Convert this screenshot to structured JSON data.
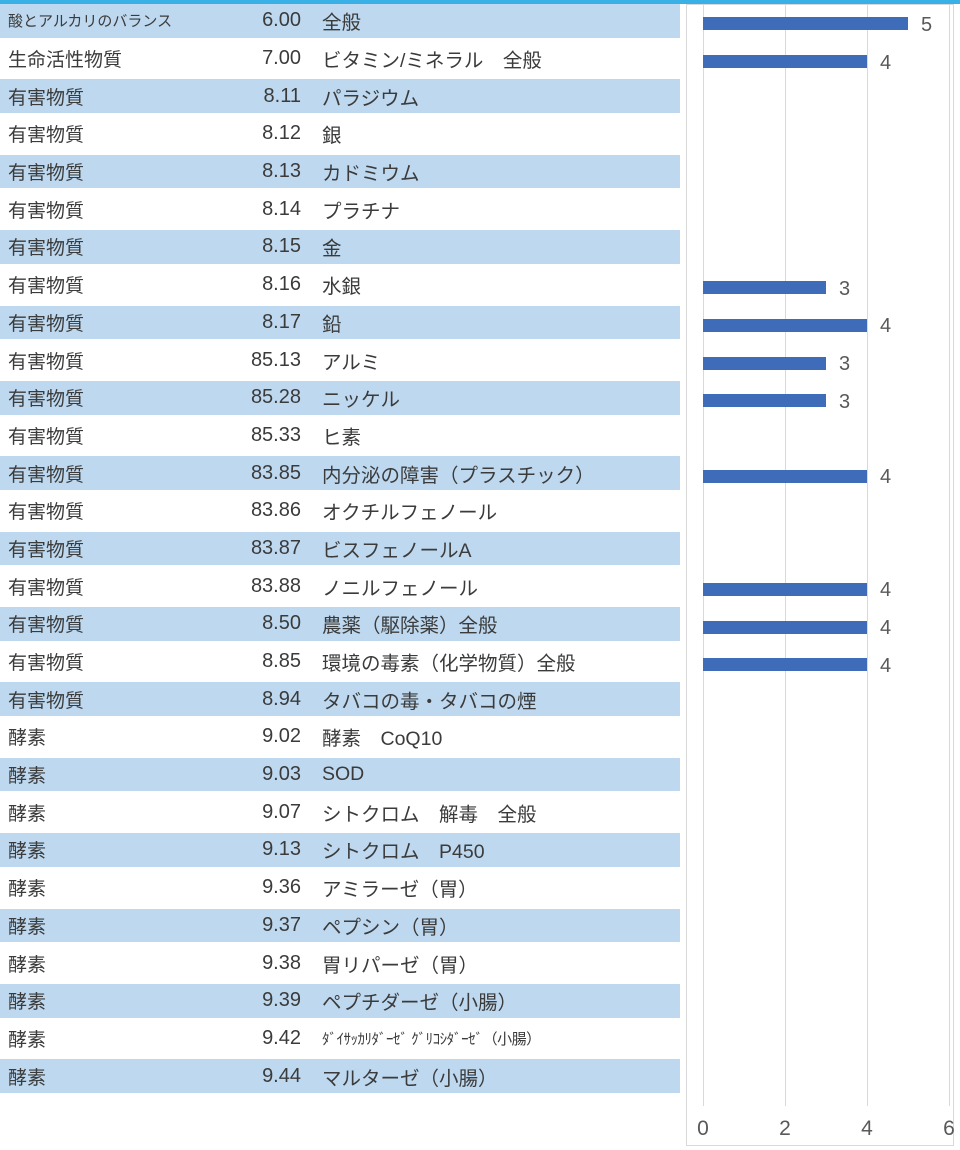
{
  "table": {
    "rows": [
      {
        "category": "酸とアルカリのバランス",
        "code": "6.00",
        "item": "全般",
        "value": 5
      },
      {
        "category": "生命活性物質",
        "code": "7.00",
        "item": "ビタミン/ミネラル　全般",
        "value": 4
      },
      {
        "category": "有害物質",
        "code": "8.11",
        "item": "パラジウム",
        "value": null
      },
      {
        "category": "有害物質",
        "code": "8.12",
        "item": "銀",
        "value": null
      },
      {
        "category": "有害物質",
        "code": "8.13",
        "item": "カドミウム",
        "value": null
      },
      {
        "category": "有害物質",
        "code": "8.14",
        "item": "プラチナ",
        "value": null
      },
      {
        "category": "有害物質",
        "code": "8.15",
        "item": "金",
        "value": null
      },
      {
        "category": "有害物質",
        "code": "8.16",
        "item": "水銀",
        "value": 3
      },
      {
        "category": "有害物質",
        "code": "8.17",
        "item": "鉛",
        "value": 4
      },
      {
        "category": "有害物質",
        "code": "85.13",
        "item": "アルミ",
        "value": 3
      },
      {
        "category": "有害物質",
        "code": "85.28",
        "item": "ニッケル",
        "value": 3
      },
      {
        "category": "有害物質",
        "code": "85.33",
        "item": "ヒ素",
        "value": null
      },
      {
        "category": "有害物質",
        "code": "83.85",
        "item": "内分泌の障害（プラスチック）",
        "value": 4
      },
      {
        "category": "有害物質",
        "code": "83.86",
        "item": "オクチルフェノール",
        "value": null
      },
      {
        "category": "有害物質",
        "code": "83.87",
        "item": "ビスフェノールA",
        "value": null
      },
      {
        "category": "有害物質",
        "code": "83.88",
        "item": "ノニルフェノール",
        "value": 4
      },
      {
        "category": "有害物質",
        "code": "8.50",
        "item": "農薬（駆除薬）全般",
        "value": 4
      },
      {
        "category": "有害物質",
        "code": "8.85",
        "item": "環境の毒素（化学物質）全般",
        "value": 4
      },
      {
        "category": "有害物質",
        "code": "8.94",
        "item": "タバコの毒・タバコの煙",
        "value": null
      },
      {
        "category": "酵素",
        "code": "9.02",
        "item": "酵素　CoQ10",
        "value": null
      },
      {
        "category": "酵素",
        "code": "9.03",
        "item": "SOD",
        "value": null
      },
      {
        "category": "酵素",
        "code": "9.07",
        "item": "シトクロム　解毒　全般",
        "value": null
      },
      {
        "category": "酵素",
        "code": "9.13",
        "item": "シトクロム　P450",
        "value": null
      },
      {
        "category": "酵素",
        "code": "9.36",
        "item": "アミラーゼ（胃）",
        "value": null
      },
      {
        "category": "酵素",
        "code": "9.37",
        "item": "ペプシン（胃）",
        "value": null
      },
      {
        "category": "酵素",
        "code": "9.38",
        "item": "胃リパーゼ（胃）",
        "value": null
      },
      {
        "category": "酵素",
        "code": "9.39",
        "item": "ペプチダーゼ（小腸）",
        "value": null
      },
      {
        "category": "酵素",
        "code": "9.42",
        "item": "ﾀﾞｲｻｯｶﾘﾀﾞｰｾﾞ ｸﾞﾘｺｼﾀﾞｰｾﾞ（小腸）",
        "value": null
      },
      {
        "category": "酵素",
        "code": "9.44",
        "item": "マルターゼ（小腸）",
        "value": null
      }
    ]
  },
  "chart": {
    "x_ticks": [
      "0",
      "2",
      "4",
      "6"
    ],
    "colors": {
      "bar": "#3e6cb8",
      "row_highlight": "#bdd8ef",
      "top_line": "#3ab1e6",
      "gridline": "#d9d9d9",
      "axis_label": "#595959",
      "text": "#3b3b3b"
    }
  },
  "chart_data": {
    "type": "bar",
    "orientation": "horizontal",
    "title": "",
    "xlabel": "",
    "ylabel": "",
    "xlim": [
      0,
      6
    ],
    "x_tick_values": [
      0,
      2,
      4,
      6
    ],
    "grid": true,
    "categories": [
      "6.00 全般",
      "7.00 ビタミン/ミネラル　全般",
      "8.11 パラジウム",
      "8.12 銀",
      "8.13 カドミウム",
      "8.14 プラチナ",
      "8.15 金",
      "8.16 水銀",
      "8.17 鉛",
      "85.13 アルミ",
      "85.28 ニッケル",
      "85.33 ヒ素",
      "83.85 内分泌の障害（プラスチック）",
      "83.86 オクチルフェノール",
      "83.87 ビスフェノールA",
      "83.88 ノニルフェノール",
      "8.50 農薬（駆除薬）全般",
      "8.85 環境の毒素（化学物質）全般",
      "8.94 タバコの毒・タバコの煙",
      "9.02 酵素　CoQ10",
      "9.03 SOD",
      "9.07 シトクロム　解毒　全般",
      "9.13 シトクロム　P450",
      "9.36 アミラーゼ（胃）",
      "9.37 ペプシン（胃）",
      "9.38 胃リパーゼ（胃）",
      "9.39 ペプチダーゼ（小腸）",
      "9.42 ﾀﾞｲｻｯｶﾘﾀﾞｰｾﾞ ｸﾞﾘｺｼﾀﾞｰｾﾞ（小腸）",
      "9.44 マルターゼ（小腸）"
    ],
    "values": [
      5,
      4,
      null,
      null,
      null,
      null,
      null,
      3,
      4,
      3,
      3,
      null,
      4,
      null,
      null,
      4,
      4,
      4,
      null,
      null,
      null,
      null,
      null,
      null,
      null,
      null,
      null,
      null,
      null
    ],
    "data_labels_shown": true
  }
}
